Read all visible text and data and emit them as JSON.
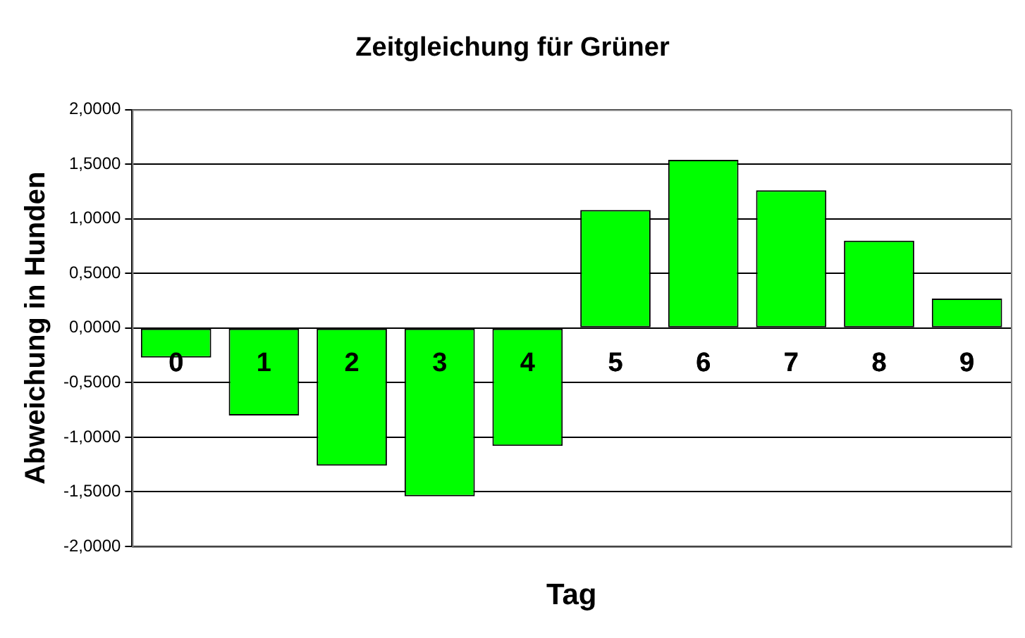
{
  "chart_data": {
    "type": "bar",
    "title": "Zeitgleichung für Grüner",
    "xlabel": "Tag",
    "ylabel": "Abweichung in Hunden",
    "categories": [
      "0",
      "1",
      "2",
      "3",
      "4",
      "5",
      "6",
      "7",
      "8",
      "9"
    ],
    "values": [
      -0.27,
      -0.8,
      -1.26,
      -1.54,
      -1.08,
      1.08,
      1.54,
      1.26,
      0.8,
      0.27
    ],
    "color": "#00ff00",
    "ylim": [
      -2,
      2
    ],
    "yticks": [
      {
        "value": -2,
        "label": "-2,0000"
      },
      {
        "value": -1.5,
        "label": "-1,5000"
      },
      {
        "value": -1,
        "label": "-1,0000"
      },
      {
        "value": -0.5,
        "label": "-0,5000"
      },
      {
        "value": 0,
        "label": "0,0000"
      },
      {
        "value": 0.5,
        "label": "0,5000"
      },
      {
        "value": 1,
        "label": "1,0000"
      },
      {
        "value": 1.5,
        "label": "1,5000"
      },
      {
        "value": 2,
        "label": "2,0000"
      }
    ],
    "grid": "y",
    "legend": false
  }
}
